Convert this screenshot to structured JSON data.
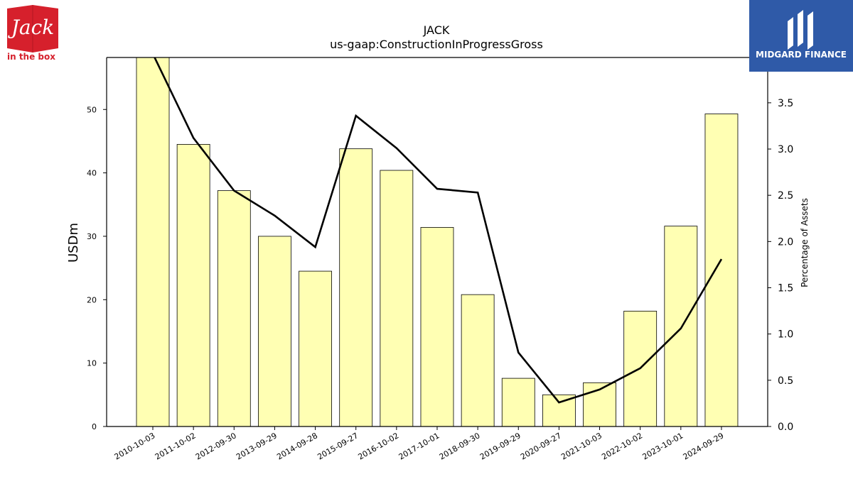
{
  "logos": {
    "left_text_brand": "Jack",
    "left_text_sub": "in the box",
    "right_text": "MIDGARD FINANCE"
  },
  "colors": {
    "bar_fill": "#ffffb3",
    "bar_stroke": "#000000",
    "line": "#000000",
    "jack_red": "#d6202c",
    "midgard_blue": "#2f5aa8"
  },
  "chart_data": {
    "type": "bar",
    "title": "JACK",
    "subtitle": "us-gaap:ConstructionInProgressGross",
    "ylabel": "USDm",
    "y2label": "Percentage of Assets",
    "categories": [
      "2010-10-03",
      "2011-10-02",
      "2012-09-30",
      "2013-09-29",
      "2014-09-28",
      "2015-09-27",
      "2016-10-02",
      "2017-10-01",
      "2018-09-30",
      "2019-09-29",
      "2020-09-27",
      "2021-10-03",
      "2022-10-02",
      "2023-10-01",
      "2024-09-29"
    ],
    "series": [
      {
        "type": "bar",
        "axis": "left",
        "values": [
          58.6,
          44.5,
          37.2,
          30.0,
          24.5,
          43.8,
          40.4,
          31.4,
          20.8,
          7.6,
          5.0,
          6.9,
          18.2,
          31.6,
          49.3
        ]
      },
      {
        "type": "line",
        "axis": "right",
        "values": [
          4.03,
          3.12,
          2.55,
          2.28,
          1.94,
          3.36,
          3.01,
          2.57,
          2.53,
          0.8,
          0.26,
          0.4,
          0.63,
          1.06,
          1.81
        ]
      }
    ],
    "ylim": [
      0,
      58.2
    ],
    "y2lim": [
      0,
      3.99
    ],
    "yticks": [
      0,
      10,
      20,
      30,
      40,
      50
    ],
    "y2ticks": [
      "0.0",
      "0.5",
      "1.0",
      "1.5",
      "2.0",
      "2.5",
      "3.0",
      "3.5"
    ],
    "grid": false
  }
}
